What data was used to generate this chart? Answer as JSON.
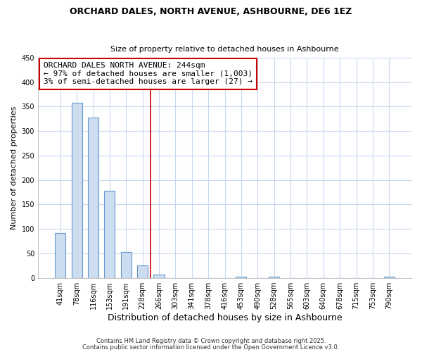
{
  "title1": "ORCHARD DALES, NORTH AVENUE, ASHBOURNE, DE6 1EZ",
  "title2": "Size of property relative to detached houses in Ashbourne",
  "xlabel": "Distribution of detached houses by size in Ashbourne",
  "ylabel": "Number of detached properties",
  "categories": [
    "41sqm",
    "78sqm",
    "116sqm",
    "153sqm",
    "191sqm",
    "228sqm",
    "266sqm",
    "303sqm",
    "341sqm",
    "378sqm",
    "416sqm",
    "453sqm",
    "490sqm",
    "528sqm",
    "565sqm",
    "603sqm",
    "640sqm",
    "678sqm",
    "715sqm",
    "753sqm",
    "790sqm"
  ],
  "values": [
    92,
    357,
    328,
    178,
    53,
    25,
    7,
    0,
    0,
    0,
    0,
    2,
    0,
    2,
    0,
    0,
    0,
    0,
    0,
    0,
    2
  ],
  "bar_color": "#ccddf0",
  "bar_edge_color": "#6699cc",
  "bar_width": 0.65,
  "vline_x": 5.5,
  "vline_color": "#cc0000",
  "annotation_text": "ORCHARD DALES NORTH AVENUE: 244sqm\n← 97% of detached houses are smaller (1,003)\n3% of semi-detached houses are larger (27) →",
  "annotation_box_color": "#ffffff",
  "annotation_box_edge": "#cc0000",
  "ylim": [
    0,
    450
  ],
  "yticks": [
    0,
    50,
    100,
    150,
    200,
    250,
    300,
    350,
    400,
    450
  ],
  "background_color": "#ffffff",
  "grid_color": "#c8d8f0",
  "footer1": "Contains HM Land Registry data © Crown copyright and database right 2025.",
  "footer2": "Contains public sector information licensed under the Open Government Licence v3.0."
}
